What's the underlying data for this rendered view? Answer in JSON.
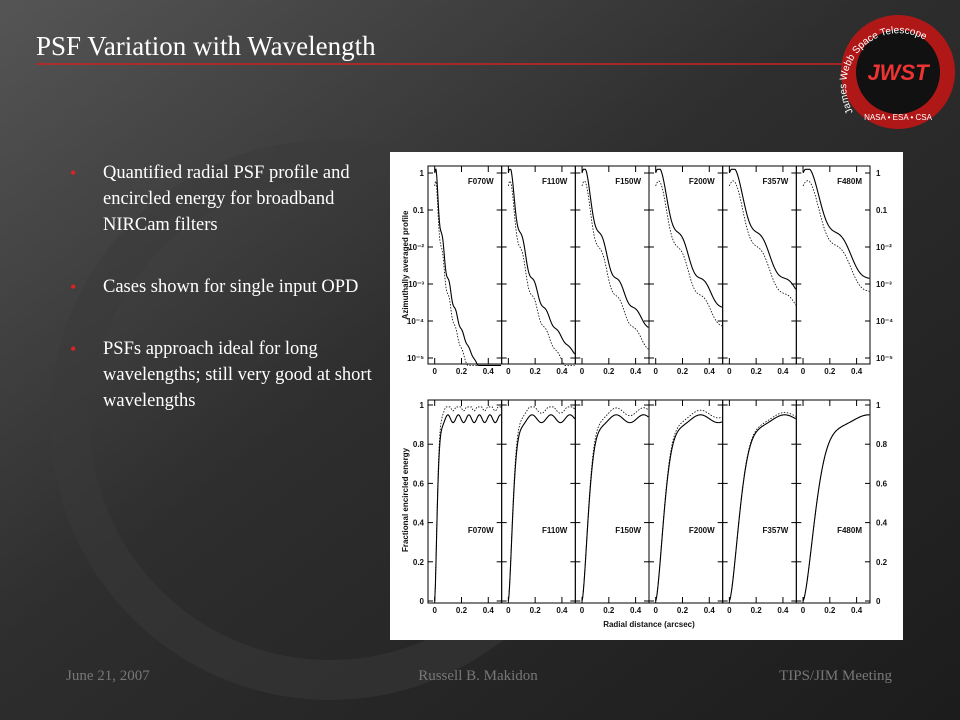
{
  "header": {
    "title": "PSF Variation with Wavelength"
  },
  "logo": {
    "ring_text": "James Webb Space Telescope",
    "name": "JWST",
    "agencies": "NASA • ESA • CSA"
  },
  "bullets": [
    "Quantified radial PSF profile and encircled energy for broadband NIRCam filters",
    "Cases shown for single input OPD",
    "PSFs approach ideal for long wavelengths; still very good at short wavelengths"
  ],
  "figure": {
    "panels": [
      "F070W",
      "F110W",
      "F150W",
      "F200W",
      "F357W",
      "F480M"
    ],
    "top_ylabel": "Azimuthally averaged profile",
    "bottom_ylabel": "Fractional encircled energy",
    "xlabel": "Radial distance (arcsec)",
    "xticks": [
      0,
      0.2,
      0.4
    ],
    "top_yticks": [
      1,
      0.1,
      {
        "value": 0.01,
        "label": "10⁻²"
      },
      {
        "value": 0.001,
        "label": "10⁻³"
      },
      {
        "value": 0.0001,
        "label": "10⁻⁴"
      },
      {
        "value": 1e-05,
        "label": "10⁻⁵"
      }
    ],
    "bottom_yticks": [
      0,
      0.2,
      0.4,
      0.6,
      0.8,
      1
    ]
  },
  "footer": {
    "date": "June 21, 2007",
    "author": "Russell B. Makidon",
    "event": "TIPS/JIM Meeting"
  }
}
